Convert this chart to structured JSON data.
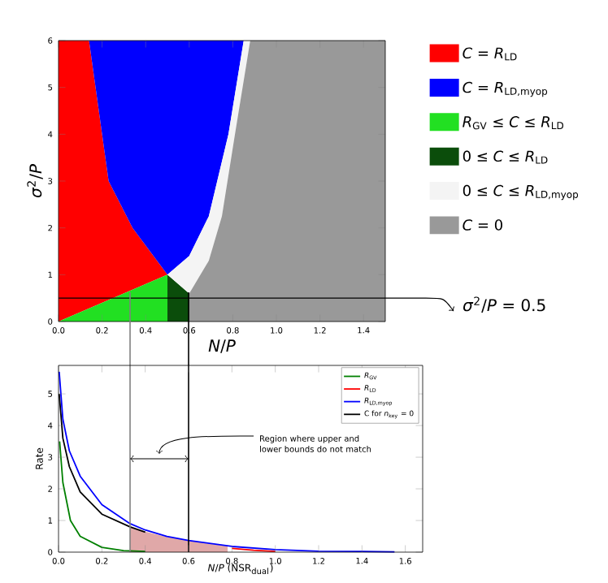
{
  "chart_data": [
    {
      "type": "area",
      "xlabel": "*N*/*P*",
      "ylabel": "*σ*$^{2}$/*P*",
      "xlim": [
        0,
        1.5
      ],
      "ylim": [
        0,
        6
      ],
      "xticks": [
        {
          "value": 0,
          "label": "0.0"
        },
        {
          "value": 0.2,
          "label": "0.2"
        },
        {
          "value": 0.4,
          "label": "0.4"
        },
        {
          "value": 0.6,
          "label": "0.6"
        },
        {
          "value": 0.8,
          "label": "0.8"
        },
        {
          "value": 1.0,
          "label": "1.0"
        },
        {
          "value": 1.2,
          "label": "1.2"
        },
        {
          "value": 1.4,
          "label": "1.4"
        }
      ],
      "yticks": [
        0,
        1,
        2,
        3,
        4,
        5,
        6
      ],
      "legend": "right",
      "series": [
        {
          "name": "*C* = *R*$_{LD}$",
          "color": "#ff0000",
          "x": [
            0,
            0,
            0.14,
            0.23,
            0.34,
            0.5
          ],
          "values": [
            0,
            6,
            6,
            3,
            2,
            1
          ]
        },
        {
          "name": "*C* = *R*$_{LD,myop}$",
          "color": "#0000ff",
          "x": [
            0.14,
            0.85,
            0.78,
            0.69,
            0.6,
            0.5,
            0.34,
            0.23
          ],
          "values": [
            6,
            6,
            4,
            2.25,
            1.4,
            1,
            2,
            3
          ]
        },
        {
          "name": "*R*$_{GV}$ ≤ *C* ≤ *R*$_{LD}$",
          "color": "#22e022",
          "x": [
            0,
            0.5,
            0.5
          ],
          "values": [
            0,
            1,
            0
          ]
        },
        {
          "name": "0 ≤ *C* ≤ *R*$_{LD}$",
          "color": "#0b4d0b",
          "x": [
            0.5,
            0.5,
            0.6,
            0.6
          ],
          "values": [
            0,
            1,
            0.6,
            0
          ]
        },
        {
          "name": "0 ≤ *C* ≤ *R*$_{LD,myop}$",
          "color": "#f4f4f4",
          "x": [
            0.85,
            0.88,
            0.81,
            0.75,
            0.69,
            0.6,
            0.5,
            0.6,
            0.69,
            0.78
          ],
          "values": [
            6,
            6,
            4,
            2.25,
            1.3,
            0.6,
            1,
            1.4,
            2.25,
            4
          ]
        },
        {
          "name": "*C* = 0",
          "color": "#999999",
          "x": [
            0.88,
            1.5,
            1.5,
            0.6,
            0.6,
            0.69,
            0.75,
            0.81
          ],
          "values": [
            6,
            6,
            0,
            0,
            0.6,
            1.3,
            2.25,
            4
          ]
        }
      ],
      "ref_lines": [
        {
          "axis": "y",
          "value": 0.5,
          "label": "*σ*$^{2}$/*P* = 0.5",
          "color": "#000000"
        }
      ]
    },
    {
      "type": "line",
      "xlabel": "*N*/*P* (NSR$_{dual}$)",
      "ylabel": "Rate",
      "xlim": [
        0,
        1.68
      ],
      "ylim": [
        0,
        5.9
      ],
      "xticks": [
        {
          "value": 0,
          "label": "0.0"
        },
        {
          "value": 0.2,
          "label": "0.2"
        },
        {
          "value": 0.4,
          "label": "0.4"
        },
        {
          "value": 0.6,
          "label": "0.6"
        },
        {
          "value": 0.8,
          "label": "0.8"
        },
        {
          "value": 1.0,
          "label": "1.0"
        },
        {
          "value": 1.2,
          "label": "1.2"
        },
        {
          "value": 1.4,
          "label": "1.4"
        },
        {
          "value": 1.6,
          "label": "1.6"
        }
      ],
      "yticks": [
        0,
        1,
        2,
        3,
        4,
        5
      ],
      "legend": "top right",
      "series": [
        {
          "type": "area",
          "color": "#e0a8a8",
          "x": [
            0.33,
            0.33,
            0.4,
            0.5,
            0.6,
            0.7,
            0.78,
            0.78
          ],
          "values": [
            0,
            0.8,
            0.65,
            0.48,
            0.37,
            0.26,
            0.19,
            0
          ]
        },
        {
          "name": "*R*$_{GV}$",
          "color": "#008000",
          "x": [
            0.005,
            0.02,
            0.055,
            0.1,
            0.2,
            0.3,
            0.4
          ],
          "values": [
            3.5,
            2.2,
            1.0,
            0.5,
            0.15,
            0.05,
            0.02
          ]
        },
        {
          "name": "*R*$_{LD}$",
          "color": "#ff0000",
          "x": [
            0.8,
            0.9,
            1.0
          ],
          "values": [
            0.12,
            0.06,
            0.02
          ]
        },
        {
          "name": "*R*$_{LD,myop}$",
          "color": "#0000ff",
          "x": [
            0.003,
            0.02,
            0.05,
            0.1,
            0.2,
            0.33,
            0.4,
            0.5,
            0.6,
            0.8,
            1.0,
            1.2,
            1.4,
            1.55
          ],
          "values": [
            5.7,
            4.2,
            3.2,
            2.4,
            1.5,
            0.9,
            0.7,
            0.5,
            0.37,
            0.18,
            0.08,
            0.03,
            0.02,
            0.01
          ]
        },
        {
          "name": "C for *n*$_{key}$ = 0",
          "color": "#000000",
          "x": [
            0.003,
            0.02,
            0.05,
            0.1,
            0.2,
            0.33,
            0.4
          ],
          "values": [
            5.0,
            3.6,
            2.7,
            1.9,
            1.2,
            0.8,
            0.63
          ]
        }
      ],
      "ref_lines": [
        {
          "axis": "x",
          "value": 0.33,
          "color": "#808080"
        },
        {
          "axis": "x",
          "value": 0.6,
          "color": "#000000"
        }
      ],
      "annotations": [
        "Region where upper and lower bounds do not match"
      ]
    }
  ]
}
